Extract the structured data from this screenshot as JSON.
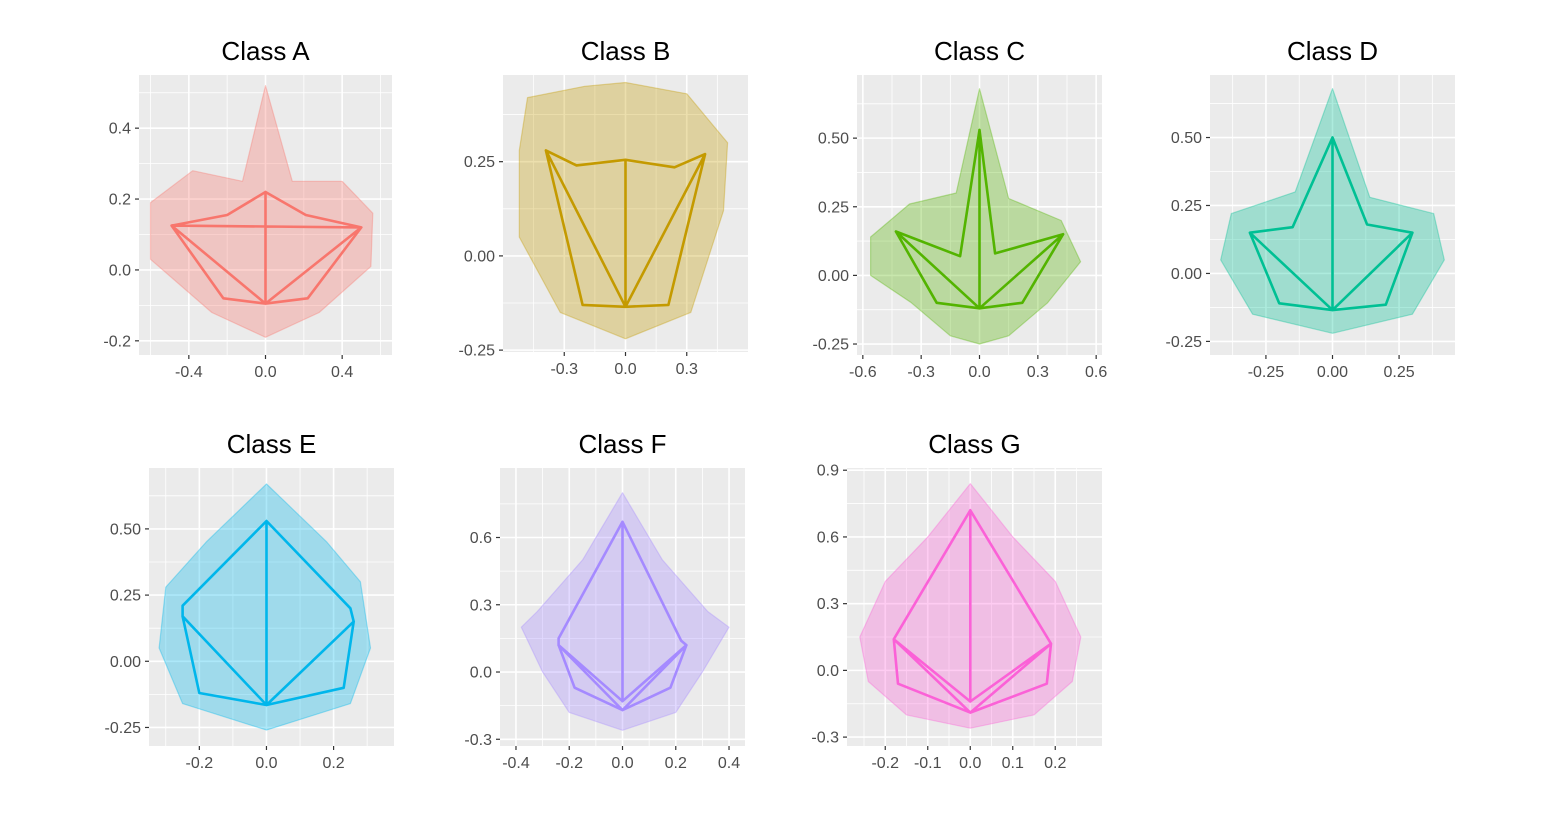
{
  "figure": {
    "background": "#ffffff",
    "panel_background": "#ebebeb",
    "grid_color": "#ffffff"
  },
  "chart_data": [
    {
      "type": "line",
      "title": "Class A",
      "color": "#F8766D",
      "xlim": [
        -0.66,
        0.66
      ],
      "ylim": [
        -0.24,
        0.55
      ],
      "xticks": [
        -0.4,
        0.0,
        0.4
      ],
      "xtick_labels": [
        "-0.4",
        "0.0",
        "0.4"
      ],
      "yticks": [
        -0.2,
        0.0,
        0.2,
        0.4
      ],
      "ytick_labels": [
        "-0.2",
        "0.0",
        "0.2",
        "0.4"
      ],
      "mean_shape": [
        [
          0.0,
          0.22
        ],
        [
          0.21,
          0.155
        ],
        [
          0.5,
          0.12
        ],
        [
          0.22,
          -0.08
        ],
        [
          0.0,
          -0.095
        ],
        [
          -0.22,
          -0.08
        ],
        [
          -0.49,
          0.125
        ],
        [
          -0.2,
          0.155
        ],
        [
          0.0,
          0.22
        ],
        [
          0.0,
          -0.095
        ],
        [
          0.5,
          0.12
        ],
        [
          -0.49,
          0.125
        ],
        [
          0.0,
          -0.095
        ]
      ],
      "envelope": [
        [
          0.0,
          0.52
        ],
        [
          0.14,
          0.25
        ],
        [
          0.4,
          0.25
        ],
        [
          0.56,
          0.16
        ],
        [
          0.55,
          0.01
        ],
        [
          0.28,
          -0.12
        ],
        [
          0.0,
          -0.19
        ],
        [
          -0.28,
          -0.12
        ],
        [
          -0.6,
          0.03
        ],
        [
          -0.6,
          0.19
        ],
        [
          -0.38,
          0.28
        ],
        [
          -0.12,
          0.25
        ]
      ]
    },
    {
      "type": "line",
      "title": "Class B",
      "color": "#C49A00",
      "xlim": [
        -0.6,
        0.6
      ],
      "ylim": [
        -0.255,
        0.48
      ],
      "xticks": [
        -0.3,
        0.0,
        0.3
      ],
      "xtick_labels": [
        "-0.3",
        "0.0",
        "0.3"
      ],
      "yticks": [
        -0.25,
        0.0,
        0.25
      ],
      "ytick_labels": [
        "-0.25",
        "0.00",
        "0.25"
      ],
      "mean_shape": [
        [
          -0.39,
          0.28
        ],
        [
          -0.24,
          0.24
        ],
        [
          0.0,
          0.255
        ],
        [
          0.24,
          0.235
        ],
        [
          0.39,
          0.27
        ],
        [
          0.21,
          -0.13
        ],
        [
          0.0,
          -0.135
        ],
        [
          -0.21,
          -0.13
        ],
        [
          -0.39,
          0.28
        ],
        [
          0.0,
          -0.135
        ],
        [
          0.39,
          0.27
        ],
        [
          0.0,
          -0.135
        ],
        [
          0.0,
          0.255
        ]
      ],
      "envelope": [
        [
          -0.48,
          0.42
        ],
        [
          -0.2,
          0.45
        ],
        [
          0.0,
          0.46
        ],
        [
          0.3,
          0.43
        ],
        [
          0.5,
          0.3
        ],
        [
          0.48,
          0.12
        ],
        [
          0.32,
          -0.15
        ],
        [
          0.0,
          -0.22
        ],
        [
          -0.32,
          -0.15
        ],
        [
          -0.52,
          0.05
        ],
        [
          -0.52,
          0.28
        ]
      ]
    },
    {
      "type": "line",
      "title": "Class C",
      "color": "#53B400",
      "xlim": [
        -0.63,
        0.63
      ],
      "ylim": [
        -0.29,
        0.73
      ],
      "xticks": [
        -0.6,
        -0.3,
        0.0,
        0.3,
        0.6
      ],
      "xtick_labels": [
        "-0.6",
        "-0.3",
        "0.0",
        "0.3",
        "0.6"
      ],
      "yticks": [
        -0.25,
        0.0,
        0.25,
        0.5
      ],
      "ytick_labels": [
        "-0.25",
        "0.00",
        "0.25",
        "0.50"
      ],
      "mean_shape": [
        [
          0.0,
          0.53
        ],
        [
          0.08,
          0.08
        ],
        [
          0.43,
          0.15
        ],
        [
          0.22,
          -0.1
        ],
        [
          0.0,
          -0.12
        ],
        [
          -0.22,
          -0.1
        ],
        [
          -0.43,
          0.16
        ],
        [
          -0.1,
          0.07
        ],
        [
          0.0,
          0.53
        ],
        [
          0.0,
          -0.12
        ],
        [
          0.43,
          0.15
        ],
        [
          0.0,
          -0.12
        ],
        [
          -0.43,
          0.16
        ]
      ],
      "envelope": [
        [
          0.0,
          0.68
        ],
        [
          0.15,
          0.28
        ],
        [
          0.42,
          0.2
        ],
        [
          0.52,
          0.05
        ],
        [
          0.35,
          -0.1
        ],
        [
          0.15,
          -0.22
        ],
        [
          0.0,
          -0.25
        ],
        [
          -0.15,
          -0.22
        ],
        [
          -0.35,
          -0.1
        ],
        [
          -0.56,
          0.0
        ],
        [
          -0.56,
          0.14
        ],
        [
          -0.36,
          0.26
        ],
        [
          -0.12,
          0.3
        ]
      ]
    },
    {
      "type": "line",
      "title": "Class D",
      "color": "#00C094",
      "xlim": [
        -0.46,
        0.46
      ],
      "ylim": [
        -0.3,
        0.73
      ],
      "xticks": [
        -0.25,
        0.0,
        0.25
      ],
      "xtick_labels": [
        "-0.25",
        "0.00",
        "0.25"
      ],
      "yticks": [
        -0.25,
        0.0,
        0.25,
        0.5
      ],
      "ytick_labels": [
        "-0.25",
        "0.00",
        "0.25",
        "0.50"
      ],
      "mean_shape": [
        [
          0.0,
          0.5
        ],
        [
          0.13,
          0.18
        ],
        [
          0.3,
          0.15
        ],
        [
          0.2,
          -0.115
        ],
        [
          0.0,
          -0.135
        ],
        [
          -0.2,
          -0.11
        ],
        [
          -0.31,
          0.15
        ],
        [
          -0.15,
          0.17
        ],
        [
          0.0,
          0.5
        ],
        [
          0.0,
          -0.135
        ],
        [
          0.3,
          0.15
        ],
        [
          0.0,
          -0.135
        ],
        [
          -0.31,
          0.15
        ]
      ],
      "envelope": [
        [
          0.0,
          0.68
        ],
        [
          0.14,
          0.28
        ],
        [
          0.38,
          0.22
        ],
        [
          0.42,
          0.05
        ],
        [
          0.3,
          -0.15
        ],
        [
          0.0,
          -0.22
        ],
        [
          -0.3,
          -0.15
        ],
        [
          -0.42,
          0.05
        ],
        [
          -0.38,
          0.22
        ],
        [
          -0.14,
          0.3
        ]
      ]
    },
    {
      "type": "line",
      "title": "Class E",
      "color": "#00B6EB",
      "xlim": [
        -0.35,
        0.38
      ],
      "ylim": [
        -0.32,
        0.73
      ],
      "xticks": [
        -0.2,
        0.0,
        0.2
      ],
      "xtick_labels": [
        "-0.2",
        "0.0",
        "0.2"
      ],
      "yticks": [
        -0.25,
        0.0,
        0.25,
        0.5
      ],
      "ytick_labels": [
        "-0.25",
        "0.00",
        "0.25",
        "0.50"
      ],
      "mean_shape": [
        [
          0.0,
          0.53
        ],
        [
          0.25,
          0.2
        ],
        [
          0.26,
          0.15
        ],
        [
          0.23,
          -0.1
        ],
        [
          0.0,
          -0.165
        ],
        [
          -0.2,
          -0.12
        ],
        [
          -0.25,
          0.17
        ],
        [
          -0.25,
          0.21
        ],
        [
          0.0,
          0.53
        ],
        [
          0.0,
          -0.165
        ],
        [
          0.26,
          0.15
        ],
        [
          0.0,
          -0.165
        ],
        [
          -0.25,
          0.17
        ]
      ],
      "envelope": [
        [
          0.0,
          0.67
        ],
        [
          0.18,
          0.45
        ],
        [
          0.28,
          0.3
        ],
        [
          0.31,
          0.05
        ],
        [
          0.25,
          -0.16
        ],
        [
          0.0,
          -0.26
        ],
        [
          -0.25,
          -0.16
        ],
        [
          -0.32,
          0.05
        ],
        [
          -0.3,
          0.28
        ],
        [
          -0.18,
          0.45
        ]
      ]
    },
    {
      "type": "line",
      "title": "Class F",
      "color": "#A58AFF",
      "xlim": [
        -0.46,
        0.46
      ],
      "ylim": [
        -0.33,
        0.91
      ],
      "xticks": [
        -0.4,
        -0.2,
        0.0,
        0.2,
        0.4
      ],
      "xtick_labels": [
        "-0.4",
        "-0.2",
        "0.0",
        "0.2",
        "0.4"
      ],
      "yticks": [
        -0.3,
        0.0,
        0.3,
        0.6
      ],
      "ytick_labels": [
        "-0.3",
        "0.0",
        "0.3",
        "0.6"
      ],
      "mean_shape": [
        [
          0.0,
          0.67
        ],
        [
          0.22,
          0.14
        ],
        [
          0.24,
          0.12
        ],
        [
          0.18,
          -0.07
        ],
        [
          0.0,
          -0.17
        ],
        [
          -0.18,
          -0.07
        ],
        [
          -0.24,
          0.12
        ],
        [
          -0.24,
          0.15
        ],
        [
          0.0,
          0.67
        ],
        [
          0.0,
          -0.13
        ],
        [
          0.24,
          0.12
        ],
        [
          0.0,
          -0.17
        ],
        [
          -0.24,
          0.12
        ],
        [
          0.0,
          -0.13
        ]
      ],
      "envelope": [
        [
          0.0,
          0.8
        ],
        [
          0.15,
          0.5
        ],
        [
          0.32,
          0.27
        ],
        [
          0.4,
          0.2
        ],
        [
          0.3,
          0.0
        ],
        [
          0.2,
          -0.18
        ],
        [
          0.0,
          -0.26
        ],
        [
          -0.2,
          -0.18
        ],
        [
          -0.3,
          0.0
        ],
        [
          -0.38,
          0.2
        ],
        [
          -0.32,
          0.27
        ],
        [
          -0.15,
          0.5
        ]
      ]
    },
    {
      "type": "line",
      "title": "Class G",
      "color": "#FB61D7",
      "xlim": [
        -0.29,
        0.31
      ],
      "ylim": [
        -0.34,
        0.91
      ],
      "xticks": [
        -0.2,
        -0.1,
        0.0,
        0.1,
        0.2
      ],
      "xtick_labels": [
        "-0.2",
        "-0.1",
        "0.0",
        "0.1",
        "0.2"
      ],
      "yticks": [
        -0.3,
        0.0,
        0.3,
        0.6,
        0.9
      ],
      "ytick_labels": [
        "-0.3",
        "0.0",
        "0.3",
        "0.6",
        "0.9"
      ],
      "mean_shape": [
        [
          0.0,
          0.72
        ],
        [
          0.19,
          0.12
        ],
        [
          0.18,
          -0.06
        ],
        [
          0.0,
          -0.19
        ],
        [
          -0.17,
          -0.06
        ],
        [
          -0.18,
          0.14
        ],
        [
          0.0,
          0.72
        ],
        [
          0.0,
          -0.14
        ],
        [
          0.19,
          0.12
        ],
        [
          0.0,
          -0.19
        ],
        [
          -0.18,
          0.14
        ],
        [
          0.0,
          -0.14
        ]
      ],
      "envelope": [
        [
          0.0,
          0.84
        ],
        [
          0.1,
          0.6
        ],
        [
          0.2,
          0.4
        ],
        [
          0.26,
          0.15
        ],
        [
          0.24,
          -0.05
        ],
        [
          0.15,
          -0.2
        ],
        [
          0.0,
          -0.26
        ],
        [
          -0.15,
          -0.2
        ],
        [
          -0.24,
          -0.05
        ],
        [
          -0.26,
          0.15
        ],
        [
          -0.2,
          0.4
        ],
        [
          -0.1,
          0.6
        ]
      ]
    }
  ]
}
